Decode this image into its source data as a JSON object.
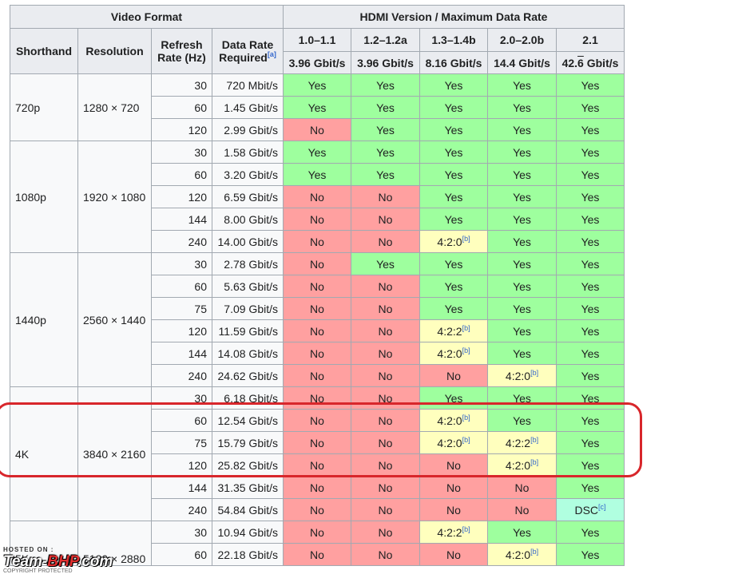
{
  "headers": {
    "video_format": "Video Format",
    "hdmi": "HDMI Version / Maximum Data Rate",
    "shorthand": "Shorthand",
    "resolution": "Resolution",
    "refresh_line1": "Refresh",
    "refresh_line2": "Rate (Hz)",
    "datarate_line1": "Data Rate",
    "datarate_line2": "Required",
    "datarate_ref": "[a]",
    "versions": [
      {
        "name": "1.0–1.1",
        "rate": "3.96 Gbit/s"
      },
      {
        "name": "1.2–1.2a",
        "rate": "3.96 Gbit/s"
      },
      {
        "name": "1.3–1.4b",
        "rate": "8.16 Gbit/s"
      },
      {
        "name": "2.0–2.0b",
        "rate": "14.4 Gbit/s"
      },
      {
        "name": "2.1",
        "rate_prefix": "42.",
        "rate_overline": "6",
        "rate_suffix": " Gbit/s"
      }
    ]
  },
  "groups": [
    {
      "shorthand": "720p",
      "resolution": "1280 × 720"
    },
    {
      "shorthand": "1080p",
      "resolution": "1920 × 1080"
    },
    {
      "shorthand": "1440p",
      "resolution": "2560 × 1440"
    },
    {
      "shorthand": "4K",
      "resolution": "3840 × 2160"
    },
    {
      "shorthand": "5K",
      "resolution": "5120 × 2880"
    }
  ],
  "rows": [
    {
      "refresh": "30",
      "rate": "720 Mbit/s",
      "cells": [
        {
          "v": "Yes"
        },
        {
          "v": "Yes"
        },
        {
          "v": "Yes"
        },
        {
          "v": "Yes"
        },
        {
          "v": "Yes"
        }
      ]
    },
    {
      "refresh": "60",
      "rate": "1.45 Gbit/s",
      "cells": [
        {
          "v": "Yes"
        },
        {
          "v": "Yes"
        },
        {
          "v": "Yes"
        },
        {
          "v": "Yes"
        },
        {
          "v": "Yes"
        }
      ]
    },
    {
      "refresh": "120",
      "rate": "2.99 Gbit/s",
      "cells": [
        {
          "v": "No"
        },
        {
          "v": "Yes"
        },
        {
          "v": "Yes"
        },
        {
          "v": "Yes"
        },
        {
          "v": "Yes"
        }
      ]
    },
    {
      "refresh": "30",
      "rate": "1.58 Gbit/s",
      "cells": [
        {
          "v": "Yes"
        },
        {
          "v": "Yes"
        },
        {
          "v": "Yes"
        },
        {
          "v": "Yes"
        },
        {
          "v": "Yes"
        }
      ]
    },
    {
      "refresh": "60",
      "rate": "3.20 Gbit/s",
      "cells": [
        {
          "v": "Yes"
        },
        {
          "v": "Yes"
        },
        {
          "v": "Yes"
        },
        {
          "v": "Yes"
        },
        {
          "v": "Yes"
        }
      ]
    },
    {
      "refresh": "120",
      "rate": "6.59 Gbit/s",
      "cells": [
        {
          "v": "No"
        },
        {
          "v": "No"
        },
        {
          "v": "Yes"
        },
        {
          "v": "Yes"
        },
        {
          "v": "Yes"
        }
      ]
    },
    {
      "refresh": "144",
      "rate": "8.00 Gbit/s",
      "cells": [
        {
          "v": "No"
        },
        {
          "v": "No"
        },
        {
          "v": "Yes"
        },
        {
          "v": "Yes"
        },
        {
          "v": "Yes"
        }
      ]
    },
    {
      "refresh": "240",
      "rate": "14.00 Gbit/s",
      "cells": [
        {
          "v": "No"
        },
        {
          "v": "No"
        },
        {
          "v": "4:2:0",
          "ref": "[b]"
        },
        {
          "v": "Yes"
        },
        {
          "v": "Yes"
        }
      ]
    },
    {
      "refresh": "30",
      "rate": "2.78 Gbit/s",
      "cells": [
        {
          "v": "No"
        },
        {
          "v": "Yes"
        },
        {
          "v": "Yes"
        },
        {
          "v": "Yes"
        },
        {
          "v": "Yes"
        }
      ]
    },
    {
      "refresh": "60",
      "rate": "5.63 Gbit/s",
      "cells": [
        {
          "v": "No"
        },
        {
          "v": "No"
        },
        {
          "v": "Yes"
        },
        {
          "v": "Yes"
        },
        {
          "v": "Yes"
        }
      ]
    },
    {
      "refresh": "75",
      "rate": "7.09 Gbit/s",
      "cells": [
        {
          "v": "No"
        },
        {
          "v": "No"
        },
        {
          "v": "Yes"
        },
        {
          "v": "Yes"
        },
        {
          "v": "Yes"
        }
      ]
    },
    {
      "refresh": "120",
      "rate": "11.59 Gbit/s",
      "cells": [
        {
          "v": "No"
        },
        {
          "v": "No"
        },
        {
          "v": "4:2:2",
          "ref": "[b]"
        },
        {
          "v": "Yes"
        },
        {
          "v": "Yes"
        }
      ]
    },
    {
      "refresh": "144",
      "rate": "14.08 Gbit/s",
      "cells": [
        {
          "v": "No"
        },
        {
          "v": "No"
        },
        {
          "v": "4:2:0",
          "ref": "[b]"
        },
        {
          "v": "Yes"
        },
        {
          "v": "Yes"
        }
      ]
    },
    {
      "refresh": "240",
      "rate": "24.62 Gbit/s",
      "cells": [
        {
          "v": "No"
        },
        {
          "v": "No"
        },
        {
          "v": "No"
        },
        {
          "v": "4:2:0",
          "ref": "[b]"
        },
        {
          "v": "Yes"
        }
      ]
    },
    {
      "refresh": "30",
      "rate": "6.18 Gbit/s",
      "cells": [
        {
          "v": "No"
        },
        {
          "v": "No"
        },
        {
          "v": "Yes"
        },
        {
          "v": "Yes"
        },
        {
          "v": "Yes"
        }
      ]
    },
    {
      "refresh": "60",
      "rate": "12.54 Gbit/s",
      "cells": [
        {
          "v": "No"
        },
        {
          "v": "No"
        },
        {
          "v": "4:2:0",
          "ref": "[b]"
        },
        {
          "v": "Yes"
        },
        {
          "v": "Yes"
        }
      ]
    },
    {
      "refresh": "75",
      "rate": "15.79 Gbit/s",
      "cells": [
        {
          "v": "No"
        },
        {
          "v": "No"
        },
        {
          "v": "4:2:0",
          "ref": "[b]"
        },
        {
          "v": "4:2:2",
          "ref": "[b]"
        },
        {
          "v": "Yes"
        }
      ]
    },
    {
      "refresh": "120",
      "rate": "25.82 Gbit/s",
      "cells": [
        {
          "v": "No"
        },
        {
          "v": "No"
        },
        {
          "v": "No"
        },
        {
          "v": "4:2:0",
          "ref": "[b]"
        },
        {
          "v": "Yes"
        }
      ]
    },
    {
      "refresh": "144",
      "rate": "31.35 Gbit/s",
      "cells": [
        {
          "v": "No"
        },
        {
          "v": "No"
        },
        {
          "v": "No"
        },
        {
          "v": "No"
        },
        {
          "v": "Yes"
        }
      ]
    },
    {
      "refresh": "240",
      "rate": "54.84 Gbit/s",
      "cells": [
        {
          "v": "No"
        },
        {
          "v": "No"
        },
        {
          "v": "No"
        },
        {
          "v": "No"
        },
        {
          "v": "DSC",
          "ref": "[c]"
        }
      ]
    },
    {
      "refresh": "30",
      "rate": "10.94 Gbit/s",
      "cells": [
        {
          "v": "No"
        },
        {
          "v": "No"
        },
        {
          "v": "4:2:2",
          "ref": "[b]"
        },
        {
          "v": "Yes"
        },
        {
          "v": "Yes"
        }
      ]
    },
    {
      "refresh": "60",
      "rate": "22.18 Gbit/s",
      "cells": [
        {
          "v": "No"
        },
        {
          "v": "No"
        },
        {
          "v": "No"
        },
        {
          "v": "4:2:0",
          "ref": "[b]"
        },
        {
          "v": "Yes"
        }
      ]
    }
  ],
  "watermark": {
    "hosted_on": "HOSTED ON :",
    "logo_team": "Team-",
    "logo_bhp": "BHP",
    "logo_com": ".com",
    "copyright": "COPYRIGHT PROTECTED"
  },
  "colors": {
    "yes": "#9eff9e",
    "no": "#ffa0a0",
    "partial": "#ffffbe",
    "dsc": "#b0ffe0",
    "header_bg": "#eaecf0",
    "highlight": "#d8262b"
  }
}
